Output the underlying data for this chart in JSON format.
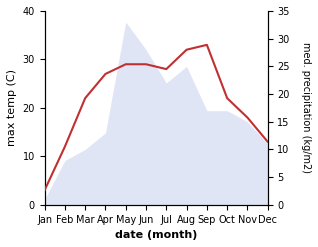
{
  "months": [
    "Jan",
    "Feb",
    "Mar",
    "Apr",
    "May",
    "Jun",
    "Jul",
    "Aug",
    "Sep",
    "Oct",
    "Nov",
    "Dec"
  ],
  "temperature": [
    3,
    12,
    22,
    27,
    29,
    29,
    28,
    32,
    33,
    22,
    18,
    13
  ],
  "precipitation": [
    1,
    8,
    10,
    13,
    33,
    28,
    22,
    25,
    17,
    17,
    15,
    11
  ],
  "temp_color": "#c03030",
  "precip_fill_color": "#c8d0f0",
  "temp_ylim": [
    0,
    40
  ],
  "precip_ylim": [
    0,
    35
  ],
  "xlabel": "date (month)",
  "ylabel_left": "max temp (C)",
  "ylabel_right": "med. precipitation (kg/m2)",
  "tick_fontsize": 7,
  "label_fontsize": 8
}
